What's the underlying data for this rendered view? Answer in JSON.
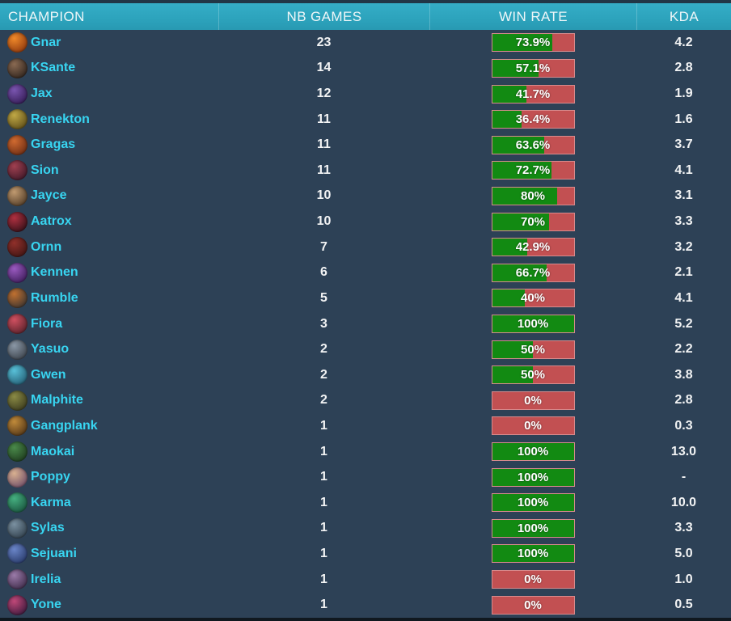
{
  "header": {
    "columns": [
      {
        "label": "CHAMPION"
      },
      {
        "label": "NB GAMES"
      },
      {
        "label": "WIN RATE"
      },
      {
        "label": "KDA"
      }
    ]
  },
  "colors": {
    "header_bg": "#2da4bd",
    "row_bg": "#2d4156",
    "top_strip": "#213646",
    "bottom_strip": "#10181f",
    "name_cyan": "#38d5f1",
    "win_green": "#128a12",
    "loss_red": "#c25052"
  },
  "rows": [
    {
      "champion": "Gnar",
      "games": "23",
      "win_rate": "73.9%",
      "win_pct": 73.9,
      "kda": "4.2",
      "icon_colors": [
        "#f0892a",
        "#7a2808"
      ]
    },
    {
      "champion": "KSante",
      "games": "14",
      "win_rate": "57.1%",
      "win_pct": 57.1,
      "kda": "2.8",
      "icon_colors": [
        "#8a6a52",
        "#1c1512"
      ]
    },
    {
      "champion": "Jax",
      "games": "12",
      "win_rate": "41.7%",
      "win_pct": 41.7,
      "kda": "1.9",
      "icon_colors": [
        "#7a55b0",
        "#241040"
      ]
    },
    {
      "champion": "Renekton",
      "games": "11",
      "win_rate": "36.4%",
      "win_pct": 36.4,
      "kda": "1.6",
      "icon_colors": [
        "#c0a845",
        "#4a3c10"
      ]
    },
    {
      "champion": "Gragas",
      "games": "11",
      "win_rate": "63.6%",
      "win_pct": 63.6,
      "kda": "3.7",
      "icon_colors": [
        "#d06a30",
        "#58200e"
      ]
    },
    {
      "champion": "Sion",
      "games": "11",
      "win_rate": "72.7%",
      "win_pct": 72.7,
      "kda": "4.1",
      "icon_colors": [
        "#a04050",
        "#2a1020"
      ]
    },
    {
      "champion": "Jayce",
      "games": "10",
      "win_rate": "80%",
      "win_pct": 80,
      "kda": "3.1",
      "icon_colors": [
        "#c09a70",
        "#3a2818"
      ]
    },
    {
      "champion": "Aatrox",
      "games": "10",
      "win_rate": "70%",
      "win_pct": 70,
      "kda": "3.3",
      "icon_colors": [
        "#b03040",
        "#1a0a10"
      ]
    },
    {
      "champion": "Ornn",
      "games": "7",
      "win_rate": "42.9%",
      "win_pct": 42.9,
      "kda": "3.2",
      "icon_colors": [
        "#90302a",
        "#301010"
      ]
    },
    {
      "champion": "Kennen",
      "games": "6",
      "win_rate": "66.7%",
      "win_pct": 66.7,
      "kda": "2.1",
      "icon_colors": [
        "#9a5ac0",
        "#2a1045"
      ]
    },
    {
      "champion": "Rumble",
      "games": "5",
      "win_rate": "40%",
      "win_pct": 40,
      "kda": "4.1",
      "icon_colors": [
        "#c07030",
        "#202830"
      ]
    },
    {
      "champion": "Fiora",
      "games": "3",
      "win_rate": "100%",
      "win_pct": 100,
      "kda": "5.2",
      "icon_colors": [
        "#d05060",
        "#401820"
      ]
    },
    {
      "champion": "Yasuo",
      "games": "2",
      "win_rate": "50%",
      "win_pct": 50,
      "kda": "2.2",
      "icon_colors": [
        "#8a97a5",
        "#2a3038"
      ]
    },
    {
      "champion": "Gwen",
      "games": "2",
      "win_rate": "50%",
      "win_pct": 50,
      "kda": "3.8",
      "icon_colors": [
        "#58c0d8",
        "#1a4a60"
      ]
    },
    {
      "champion": "Malphite",
      "games": "2",
      "win_rate": "0%",
      "win_pct": 0,
      "kda": "2.8",
      "icon_colors": [
        "#8a8a45",
        "#2a2a15"
      ]
    },
    {
      "champion": "Gangplank",
      "games": "1",
      "win_rate": "0%",
      "win_pct": 0,
      "kda": "0.3",
      "icon_colors": [
        "#c08a3a",
        "#3a2410"
      ]
    },
    {
      "champion": "Maokai",
      "games": "1",
      "win_rate": "100%",
      "win_pct": 100,
      "kda": "13.0",
      "icon_colors": [
        "#4a8a4a",
        "#152a15"
      ]
    },
    {
      "champion": "Poppy",
      "games": "1",
      "win_rate": "100%",
      "win_pct": 100,
      "kda": "-",
      "icon_colors": [
        "#d8b090",
        "#5a3a60"
      ]
    },
    {
      "champion": "Karma",
      "games": "1",
      "win_rate": "100%",
      "win_pct": 100,
      "kda": "10.0",
      "icon_colors": [
        "#45b080",
        "#104030"
      ]
    },
    {
      "champion": "Sylas",
      "games": "1",
      "win_rate": "100%",
      "win_pct": 100,
      "kda": "3.3",
      "icon_colors": [
        "#7a90a0",
        "#202e3a"
      ]
    },
    {
      "champion": "Sejuani",
      "games": "1",
      "win_rate": "100%",
      "win_pct": 100,
      "kda": "5.0",
      "icon_colors": [
        "#6a85c8",
        "#1a2a55"
      ]
    },
    {
      "champion": "Irelia",
      "games": "1",
      "win_rate": "0%",
      "win_pct": 0,
      "kda": "1.0",
      "icon_colors": [
        "#9a7aa8",
        "#2a1a35"
      ]
    },
    {
      "champion": "Yone",
      "games": "1",
      "win_rate": "0%",
      "win_pct": 0,
      "kda": "0.5",
      "icon_colors": [
        "#c04878",
        "#201030"
      ]
    }
  ]
}
